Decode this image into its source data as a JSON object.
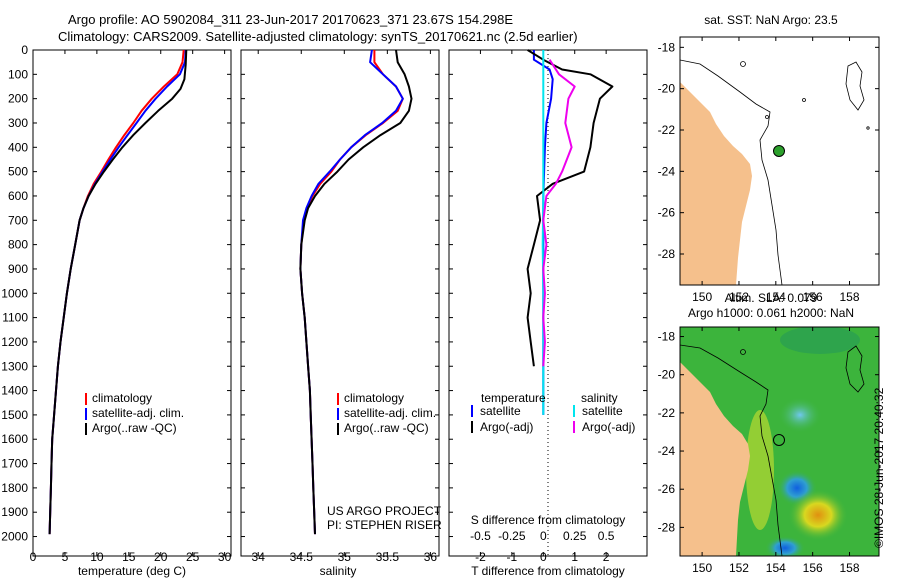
{
  "header": {
    "line1": "Argo profile: AO 5902084_311 23-Jun-2017 20170623_371 23.67S 154.298E",
    "line2": "Climatology: CARS2009. Satellite-adjusted climatology: synTS_20170621.nc (2.5d earlier)"
  },
  "colors": {
    "climatology": "#ff0000",
    "satellite": "#0000ff",
    "argo": "#000000",
    "salinity_satellite": "#00e5ee",
    "salinity_argo": "#ee00ee",
    "land": "#f5c08c",
    "sla_field": "#3cb43c",
    "float_marker": "#2ca02c"
  },
  "chart_data": [
    {
      "id": "temperature",
      "type": "line",
      "xlabel": "temperature (deg C)",
      "ylabel": "",
      "xlim": [
        0,
        31
      ],
      "ylim": [
        0,
        2080
      ],
      "y_inverted": true,
      "x_ticks": [
        "0",
        "5",
        "10",
        "15",
        "20",
        "25",
        "30"
      ],
      "y_ticks": [
        "0",
        "100",
        "200",
        "300",
        "400",
        "500",
        "600",
        "700",
        "800",
        "900",
        "1000",
        "1100",
        "1200",
        "1300",
        "1400",
        "1500",
        "1600",
        "1700",
        "1800",
        "1900",
        "2000"
      ],
      "legend": [
        "climatology",
        "satellite-adj. clim.",
        "Argo(..raw -QC)"
      ],
      "series": [
        {
          "name": "climatology",
          "color": "climatology",
          "points": [
            [
              23.6,
              0
            ],
            [
              23.4,
              50
            ],
            [
              22.6,
              100
            ],
            [
              20.5,
              150
            ],
            [
              18.6,
              200
            ],
            [
              17.0,
              250
            ],
            [
              15.7,
              300
            ],
            [
              14.3,
              350
            ],
            [
              13.0,
              400
            ],
            [
              11.8,
              450
            ],
            [
              10.7,
              500
            ],
            [
              9.5,
              550
            ],
            [
              8.6,
              600
            ],
            [
              7.9,
              650
            ],
            [
              7.3,
              700
            ],
            [
              6.6,
              800
            ],
            [
              5.9,
              900
            ],
            [
              5.3,
              1000
            ],
            [
              4.8,
              1100
            ],
            [
              4.3,
              1200
            ],
            [
              3.9,
              1300
            ],
            [
              3.6,
              1400
            ],
            [
              3.3,
              1500
            ],
            [
              3.0,
              1600
            ],
            [
              2.9,
              1700
            ],
            [
              2.8,
              1800
            ],
            [
              2.7,
              1900
            ],
            [
              2.6,
              1990
            ]
          ]
        },
        {
          "name": "satellite-adj. clim.",
          "color": "satellite",
          "points": [
            [
              23.9,
              0
            ],
            [
              23.8,
              50
            ],
            [
              23.0,
              100
            ],
            [
              21.0,
              150
            ],
            [
              19.2,
              200
            ],
            [
              17.6,
              250
            ],
            [
              16.2,
              300
            ],
            [
              14.8,
              350
            ],
            [
              13.4,
              400
            ],
            [
              12.1,
              450
            ],
            [
              10.9,
              500
            ],
            [
              9.7,
              550
            ],
            [
              8.7,
              600
            ],
            [
              7.9,
              650
            ],
            [
              7.3,
              700
            ],
            [
              6.6,
              800
            ],
            [
              5.9,
              900
            ],
            [
              5.3,
              1000
            ],
            [
              4.8,
              1100
            ],
            [
              4.3,
              1200
            ],
            [
              3.9,
              1300
            ],
            [
              3.6,
              1400
            ],
            [
              3.3,
              1500
            ],
            [
              3.0,
              1600
            ],
            [
              2.9,
              1700
            ],
            [
              2.8,
              1800
            ],
            [
              2.7,
              1900
            ],
            [
              2.6,
              1990
            ]
          ]
        },
        {
          "name": "Argo(..raw -QC)",
          "color": "argo",
          "points": [
            [
              24.0,
              0
            ],
            [
              23.9,
              60
            ],
            [
              23.7,
              120
            ],
            [
              23.1,
              160
            ],
            [
              21.8,
              200
            ],
            [
              19.6,
              250
            ],
            [
              17.6,
              300
            ],
            [
              15.7,
              350
            ],
            [
              14.0,
              400
            ],
            [
              12.5,
              450
            ],
            [
              11.1,
              500
            ],
            [
              9.8,
              550
            ],
            [
              8.7,
              600
            ],
            [
              7.9,
              650
            ],
            [
              7.3,
              700
            ],
            [
              6.6,
              800
            ],
            [
              5.9,
              900
            ],
            [
              5.3,
              1000
            ],
            [
              4.8,
              1100
            ],
            [
              4.3,
              1200
            ],
            [
              3.9,
              1300
            ],
            [
              3.6,
              1400
            ],
            [
              3.3,
              1500
            ],
            [
              3.0,
              1600
            ],
            [
              2.9,
              1700
            ],
            [
              2.8,
              1800
            ],
            [
              2.7,
              1900
            ],
            [
              2.6,
              1990
            ]
          ]
        }
      ]
    },
    {
      "id": "salinity",
      "type": "line",
      "xlabel": "salinity",
      "xlim": [
        33.8,
        36.1
      ],
      "ylim": [
        0,
        2080
      ],
      "y_inverted": true,
      "x_ticks": [
        "34",
        "34.5",
        "35",
        "35.5",
        "36"
      ],
      "legend": [
        "climatology",
        "satellite-adj. clim.",
        "Argo(..raw -QC)"
      ],
      "annotation": [
        "US ARGO PROJECT",
        "PI: STEPHEN RISER"
      ],
      "series": [
        {
          "name": "climatology",
          "color": "climatology",
          "points": [
            [
              35.35,
              0
            ],
            [
              35.35,
              50
            ],
            [
              35.45,
              100
            ],
            [
              35.6,
              150
            ],
            [
              35.68,
              200
            ],
            [
              35.62,
              250
            ],
            [
              35.45,
              300
            ],
            [
              35.25,
              350
            ],
            [
              35.08,
              400
            ],
            [
              34.95,
              450
            ],
            [
              34.85,
              500
            ],
            [
              34.72,
              550
            ],
            [
              34.63,
              600
            ],
            [
              34.57,
              650
            ],
            [
              34.53,
              700
            ],
            [
              34.5,
              800
            ],
            [
              34.49,
              900
            ],
            [
              34.51,
              1000
            ],
            [
              34.54,
              1100
            ],
            [
              34.56,
              1200
            ],
            [
              34.58,
              1300
            ],
            [
              34.6,
              1400
            ],
            [
              34.61,
              1500
            ],
            [
              34.62,
              1600
            ],
            [
              34.63,
              1700
            ],
            [
              34.64,
              1800
            ],
            [
              34.65,
              1900
            ],
            [
              34.66,
              1990
            ]
          ]
        },
        {
          "name": "satellite-adj. clim.",
          "color": "satellite",
          "points": [
            [
              35.32,
              0
            ],
            [
              35.3,
              50
            ],
            [
              35.45,
              100
            ],
            [
              35.6,
              150
            ],
            [
              35.68,
              200
            ],
            [
              35.6,
              250
            ],
            [
              35.44,
              300
            ],
            [
              35.24,
              350
            ],
            [
              35.08,
              400
            ],
            [
              34.95,
              450
            ],
            [
              34.83,
              500
            ],
            [
              34.7,
              550
            ],
            [
              34.62,
              600
            ],
            [
              34.56,
              650
            ],
            [
              34.52,
              700
            ],
            [
              34.5,
              800
            ],
            [
              34.49,
              900
            ],
            [
              34.51,
              1000
            ],
            [
              34.54,
              1100
            ],
            [
              34.56,
              1200
            ],
            [
              34.58,
              1300
            ],
            [
              34.6,
              1400
            ],
            [
              34.61,
              1500
            ],
            [
              34.62,
              1600
            ],
            [
              34.63,
              1700
            ],
            [
              34.64,
              1800
            ],
            [
              34.65,
              1900
            ],
            [
              34.66,
              1990
            ]
          ]
        },
        {
          "name": "Argo(..raw -QC)",
          "color": "argo",
          "points": [
            [
              35.6,
              0
            ],
            [
              35.62,
              50
            ],
            [
              35.7,
              100
            ],
            [
              35.75,
              150
            ],
            [
              35.78,
              200
            ],
            [
              35.75,
              250
            ],
            [
              35.65,
              300
            ],
            [
              35.42,
              350
            ],
            [
              35.22,
              400
            ],
            [
              35.05,
              450
            ],
            [
              34.92,
              500
            ],
            [
              34.77,
              550
            ],
            [
              34.66,
              600
            ],
            [
              34.58,
              650
            ],
            [
              34.54,
              700
            ],
            [
              34.5,
              800
            ],
            [
              34.49,
              900
            ],
            [
              34.51,
              1000
            ],
            [
              34.54,
              1100
            ],
            [
              34.56,
              1200
            ],
            [
              34.58,
              1300
            ],
            [
              34.6,
              1400
            ],
            [
              34.61,
              1500
            ],
            [
              34.62,
              1600
            ],
            [
              34.63,
              1700
            ],
            [
              34.64,
              1800
            ],
            [
              34.65,
              1900
            ],
            [
              34.66,
              1990
            ]
          ]
        }
      ]
    },
    {
      "id": "difference",
      "type": "line",
      "xlabel": "T difference from climatology",
      "top_label": "S difference from climatology",
      "xlim": [
        -3,
        3.3
      ],
      "ylim": [
        0,
        2080
      ],
      "y_inverted": true,
      "x_ticks": [
        "-2",
        "-1",
        "0",
        "1",
        "2"
      ],
      "s_ticks": [
        "-0.5",
        "-0.25",
        "0",
        "0.25",
        "0.5"
      ],
      "legend_headers": [
        "temperature",
        "salinity"
      ],
      "legend": [
        [
          "satellite",
          "Argo(-adj)"
        ],
        [
          "satellite",
          "Argo(-adj)"
        ]
      ],
      "series": [
        {
          "name": "satellite",
          "group": "temperature",
          "color": "satellite",
          "points": [
            [
              -0.3,
              0
            ],
            [
              -0.3,
              40
            ],
            [
              0.2,
              80
            ],
            [
              0.3,
              120
            ],
            [
              0.25,
              200
            ],
            [
              0.1,
              300
            ],
            [
              0.05,
              400
            ],
            [
              0.0,
              600
            ],
            [
              0.0,
              1000
            ],
            [
              0.0,
              1500
            ]
          ]
        },
        {
          "name": "Argo(-adj)",
          "group": "temperature",
          "color": "argo",
          "points": [
            [
              -0.5,
              0
            ],
            [
              0.0,
              40
            ],
            [
              0.6,
              80
            ],
            [
              1.5,
              100
            ],
            [
              2.2,
              150
            ],
            [
              1.8,
              200
            ],
            [
              1.6,
              300
            ],
            [
              1.5,
              400
            ],
            [
              1.3,
              500
            ],
            [
              0.3,
              550
            ],
            [
              -0.2,
              600
            ],
            [
              -0.1,
              700
            ],
            [
              -0.3,
              800
            ],
            [
              -0.5,
              900
            ],
            [
              -0.4,
              1000
            ],
            [
              -0.5,
              1100
            ],
            [
              -0.4,
              1200
            ],
            [
              -0.3,
              1300
            ]
          ]
        },
        {
          "name": "satellite",
          "group": "salinity",
          "color": "salinity_satellite",
          "points": [
            [
              0.0,
              0
            ],
            [
              0.0,
              200
            ],
            [
              0.0,
              400
            ],
            [
              0.0,
              600
            ],
            [
              -0.02,
              800
            ],
            [
              0.0,
              1000
            ],
            [
              0.0,
              1200
            ],
            [
              0.0,
              1400
            ],
            [
              0.0,
              1500
            ]
          ]
        },
        {
          "name": "Argo(-adj)",
          "group": "salinity",
          "color": "salinity_argo",
          "points": [
            [
              0.2,
              40
            ],
            [
              0.5,
              100
            ],
            [
              1.0,
              150
            ],
            [
              0.8,
              200
            ],
            [
              0.7,
              300
            ],
            [
              0.9,
              400
            ],
            [
              0.6,
              500
            ],
            [
              0.4,
              550
            ],
            [
              0.1,
              600
            ],
            [
              0.0,
              700
            ],
            [
              0.1,
              800
            ],
            [
              0.0,
              900
            ],
            [
              0.05,
              1000
            ],
            [
              0.0,
              1100
            ],
            [
              0.05,
              1200
            ],
            [
              0.0,
              1300
            ]
          ]
        }
      ]
    }
  ],
  "maps": [
    {
      "id": "sst-map",
      "title": "sat. SST: NaN Argo: 23.5",
      "lon_ticks": [
        "150",
        "152",
        "154",
        "156",
        "158"
      ],
      "lat_ticks": [
        "-18",
        "-20",
        "-22",
        "-24",
        "-26",
        "-28"
      ]
    },
    {
      "id": "sla-map",
      "title_line1": "Altim. SLA: 0.079",
      "title_line2": "Argo h1000: 0.061 h2000: NaN",
      "lon_ticks": [
        "150",
        "152",
        "154",
        "156",
        "158"
      ],
      "lat_ticks": [
        "-18",
        "-20",
        "-22",
        "-24",
        "-26",
        "-28"
      ]
    }
  ],
  "stamp": "©IMOS 28-Jun-2017 20:40:32"
}
